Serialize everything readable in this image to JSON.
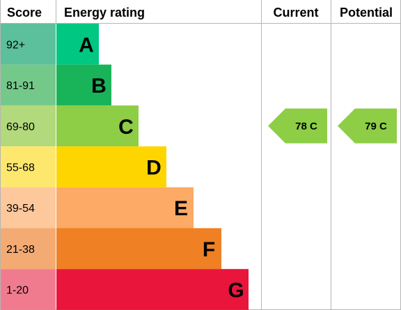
{
  "chart_data": {
    "type": "table",
    "headers": {
      "score": "Score",
      "rating": "Energy rating",
      "current": "Current",
      "potential": "Potential"
    },
    "bands": [
      {
        "range": "92+",
        "letter": "A",
        "color": "#5cc09c",
        "bar_color": "#00c781"
      },
      {
        "range": "81-91",
        "letter": "B",
        "color": "#74c98a",
        "bar_color": "#19b459"
      },
      {
        "range": "69-80",
        "letter": "C",
        "color": "#b2d97c",
        "bar_color": "#8dce46"
      },
      {
        "range": "55-68",
        "letter": "D",
        "color": "#fde86d",
        "bar_color": "#ffd500"
      },
      {
        "range": "39-54",
        "letter": "E",
        "color": "#fcc89c",
        "bar_color": "#fcaa65"
      },
      {
        "range": "21-38",
        "letter": "F",
        "color": "#f3ab73",
        "bar_color": "#ef8023"
      },
      {
        "range": "1-20",
        "letter": "G",
        "color": "#f07b8f",
        "bar_color": "#e9153b"
      }
    ],
    "current": {
      "value": 78,
      "band": "C",
      "label": "78 C",
      "color": "#8dce46"
    },
    "potential": {
      "value": 79,
      "band": "C",
      "label": "79 C",
      "color": "#8dce46"
    }
  }
}
